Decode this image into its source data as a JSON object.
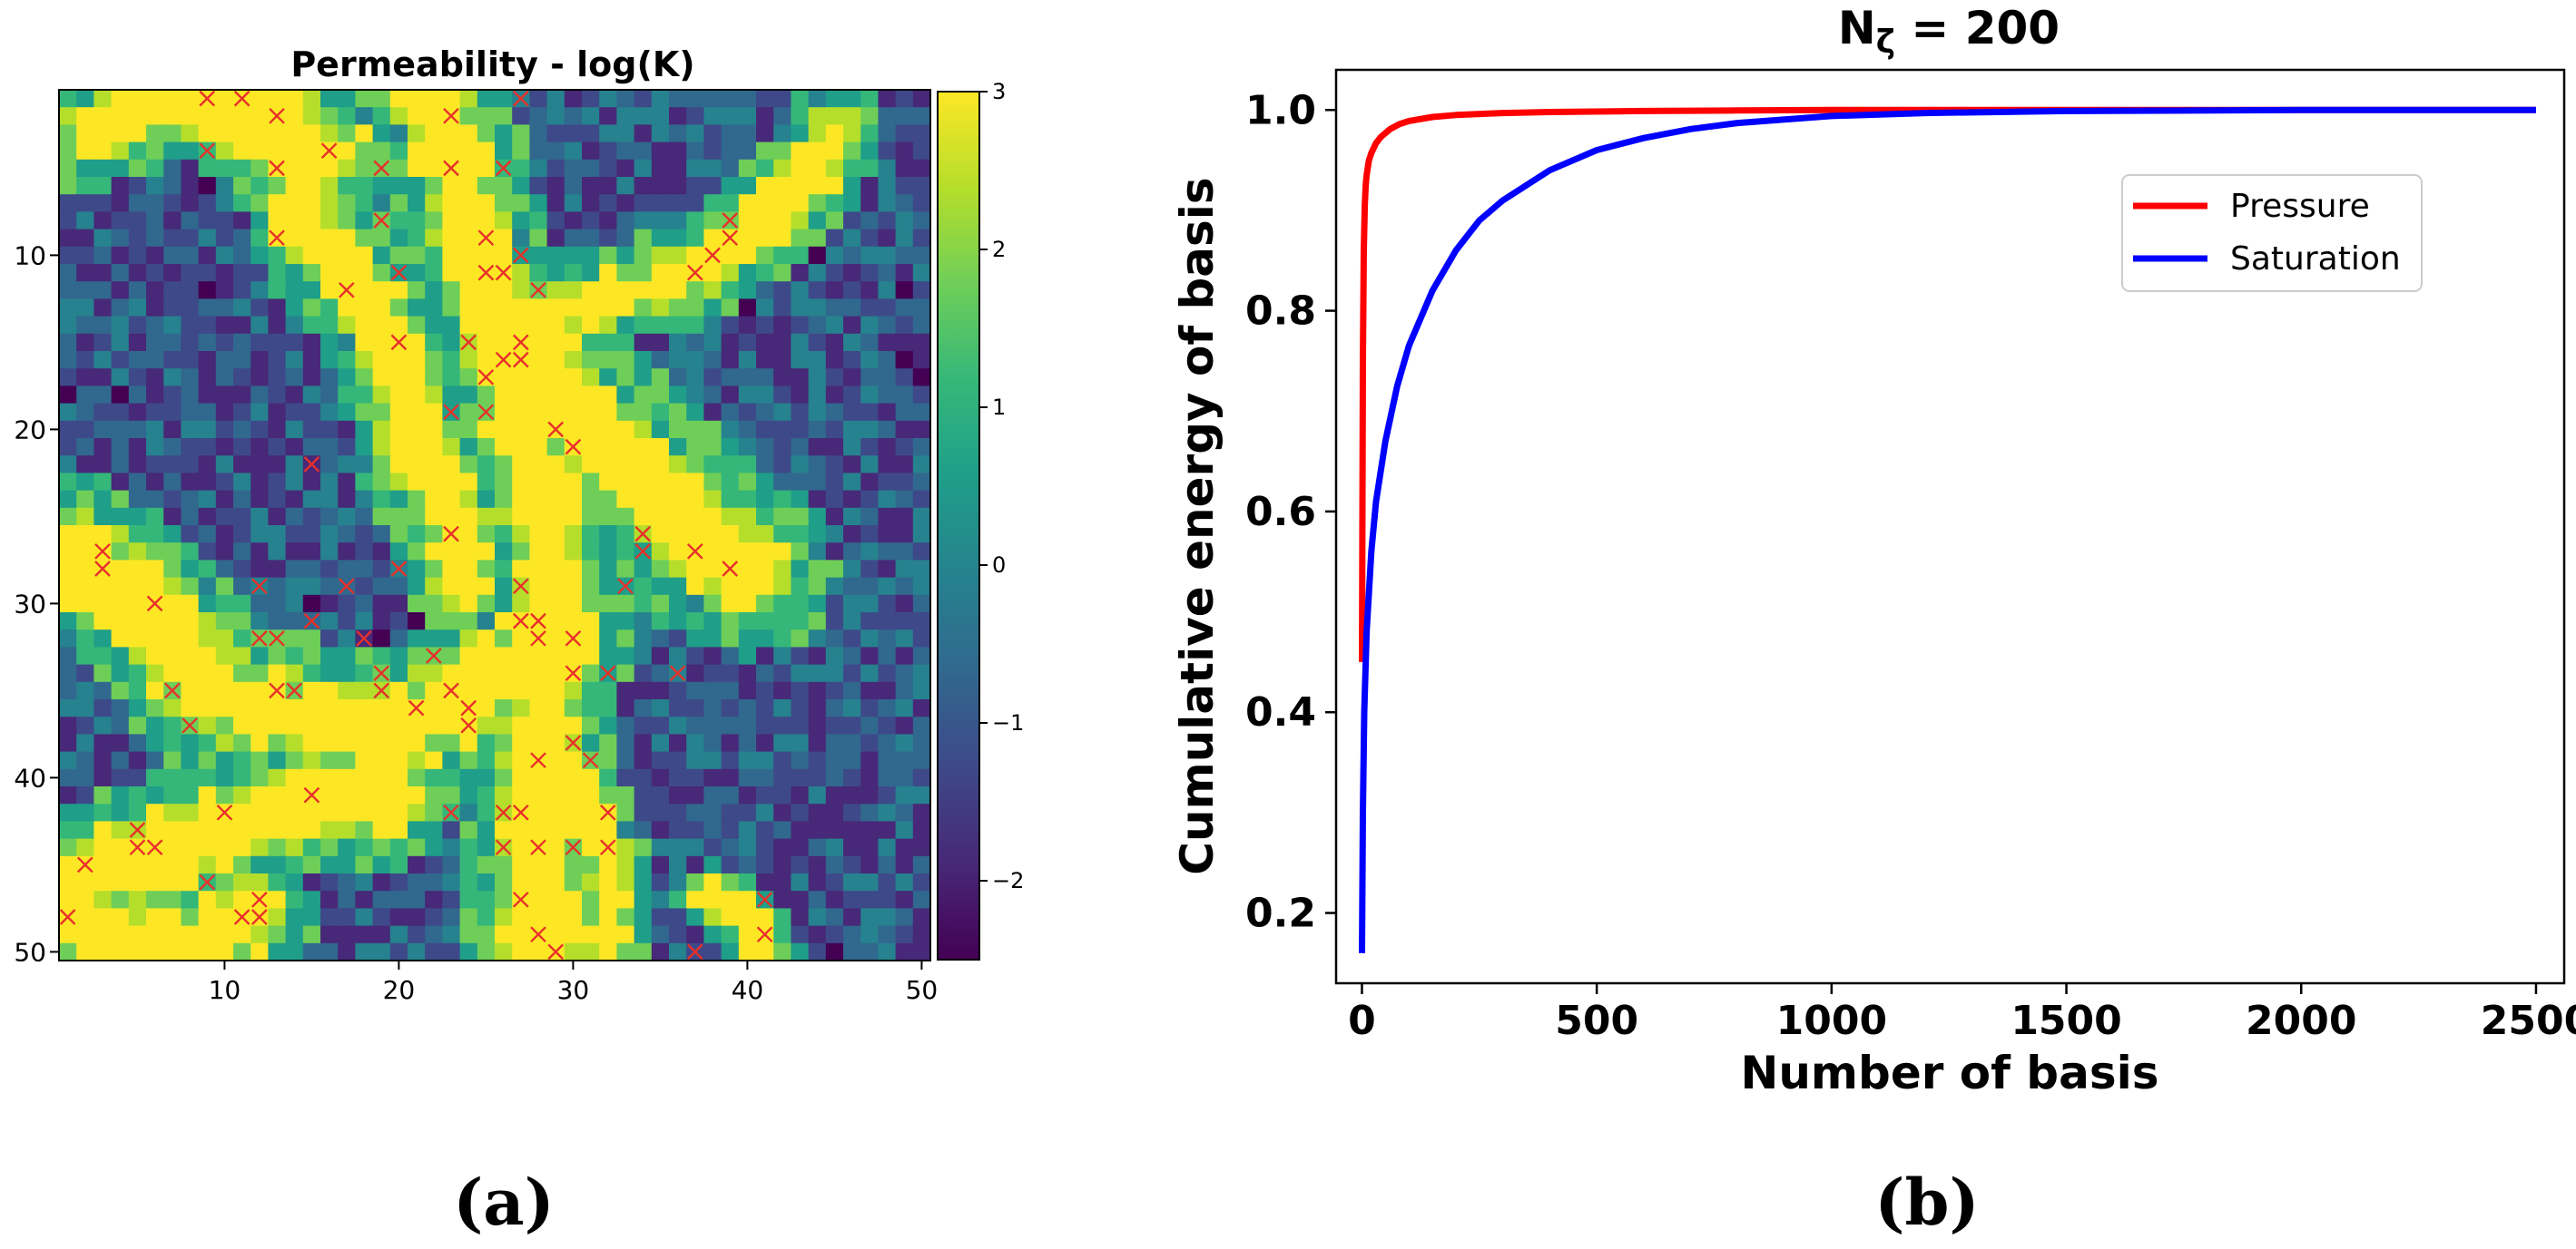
{
  "colors": {
    "cmap": [
      "#440154",
      "#482878",
      "#3e4989",
      "#31688e",
      "#26828e",
      "#1f9e89",
      "#35b779",
      "#6ece58",
      "#b5de2b",
      "#fde725"
    ],
    "marker": "#e8302a",
    "pressure": "#ff0000",
    "saturation": "#0000ff"
  },
  "panel_labels": [
    "(a)",
    "(b)"
  ],
  "chart_data": [
    {
      "type": "heatmap",
      "title": "Permeability - log(K)",
      "grid_size": [
        50,
        50
      ],
      "x_ticks": [
        10,
        20,
        30,
        40,
        50
      ],
      "y_ticks": [
        10,
        20,
        30,
        40,
        50
      ],
      "colorbar": {
        "min": -2.5,
        "max": 3,
        "ticks": [
          3,
          2,
          1,
          0,
          -1,
          -2
        ],
        "tick_labels": [
          "3",
          "2",
          "1",
          "0",
          "−1",
          "−2"
        ]
      },
      "field_description": "Channelized log-permeability field; values estimated from the image",
      "channel_paths": [
        {
          "name": "upper-left",
          "points": [
            [
              2,
              3
            ],
            [
              5,
              2
            ],
            [
              8,
              1
            ],
            [
              10,
              2
            ],
            [
              12,
              3
            ],
            [
              15,
              4
            ],
            [
              17,
              4
            ]
          ],
          "width": 1.8
        },
        {
          "name": "upper-center",
          "points": [
            [
              13,
              1
            ],
            [
              14,
              5
            ],
            [
              15,
              9
            ],
            [
              18,
              12
            ],
            [
              20,
              16
            ],
            [
              21,
              21
            ],
            [
              23,
              25
            ],
            [
              24,
              29
            ]
          ],
          "width": 2.0
        },
        {
          "name": "center-trunk",
          "points": [
            [
              22,
              1
            ],
            [
              23,
              4
            ],
            [
              24,
              8
            ],
            [
              25,
              12
            ],
            [
              26,
              16
            ],
            [
              27,
              20
            ],
            [
              28,
              24
            ],
            [
              29,
              29
            ],
            [
              29,
              33
            ],
            [
              28,
              38
            ],
            [
              28,
              44
            ],
            [
              28,
              50
            ]
          ],
          "width": 2.3
        },
        {
          "name": "center-branch",
          "points": [
            [
              27,
              14
            ],
            [
              29,
              18
            ],
            [
              32,
              21
            ],
            [
              35,
              24
            ],
            [
              38,
              27
            ],
            [
              40,
              28
            ]
          ],
          "width": 2.8
        },
        {
          "name": "upper-right",
          "points": [
            [
              45,
              3
            ],
            [
              44,
              5
            ],
            [
              42,
              7
            ],
            [
              40,
              9
            ],
            [
              37,
              11
            ],
            [
              34,
              12
            ],
            [
              30,
              13
            ],
            [
              27,
              14
            ]
          ],
          "width": 1.6
        },
        {
          "name": "left-lower",
          "points": [
            [
              1,
              27
            ],
            [
              4,
              29
            ],
            [
              7,
              32
            ],
            [
              9,
              35
            ],
            [
              12,
              36
            ],
            [
              16,
              37
            ],
            [
              20,
              37
            ],
            [
              23,
              36
            ],
            [
              25,
              34
            ],
            [
              28,
              33
            ]
          ],
          "width": 2.6
        },
        {
          "name": "bottom-left",
          "points": [
            [
              1,
              46
            ],
            [
              4,
              45
            ],
            [
              7,
              44
            ],
            [
              10,
              43
            ],
            [
              13,
              42
            ],
            [
              16,
              41
            ],
            [
              19,
              41
            ]
          ],
          "width": 2.4
        },
        {
          "name": "bottom-left-fill",
          "points": [
            [
              1,
              48
            ],
            [
              3,
              49
            ],
            [
              6,
              50
            ],
            [
              9,
              50
            ],
            [
              11,
              48
            ]
          ],
          "width": 2.4
        },
        {
          "name": "bottom-right",
          "points": [
            [
              30,
              39
            ],
            [
              31,
              42
            ],
            [
              32,
              45
            ],
            [
              32,
              50
            ]
          ],
          "width": 1.4
        },
        {
          "name": "bottom-small",
          "points": [
            [
              38,
              47
            ],
            [
              40,
              48
            ],
            [
              41,
              50
            ]
          ],
          "width": 1.2
        }
      ],
      "markers": [
        [
          9,
          1
        ],
        [
          11,
          1
        ],
        [
          27,
          1
        ],
        [
          13,
          2
        ],
        [
          23,
          2
        ],
        [
          9,
          4
        ],
        [
          16,
          4
        ],
        [
          13,
          5
        ],
        [
          19,
          5
        ],
        [
          23,
          5
        ],
        [
          26,
          5
        ],
        [
          39,
          8
        ],
        [
          19,
          8
        ],
        [
          13,
          9
        ],
        [
          25,
          9
        ],
        [
          39,
          9
        ],
        [
          27,
          10
        ],
        [
          38,
          10
        ],
        [
          20,
          11
        ],
        [
          25,
          11
        ],
        [
          26,
          11
        ],
        [
          37,
          11
        ],
        [
          17,
          12
        ],
        [
          28,
          12
        ],
        [
          20,
          15
        ],
        [
          24,
          15
        ],
        [
          27,
          15
        ],
        [
          26,
          16
        ],
        [
          27,
          16
        ],
        [
          25,
          17
        ],
        [
          23,
          19
        ],
        [
          25,
          19
        ],
        [
          29,
          20
        ],
        [
          30,
          21
        ],
        [
          15,
          22
        ],
        [
          23,
          26
        ],
        [
          34,
          26
        ],
        [
          3,
          27
        ],
        [
          34,
          27
        ],
        [
          37,
          27
        ],
        [
          3,
          28
        ],
        [
          20,
          28
        ],
        [
          39,
          28
        ],
        [
          12,
          29
        ],
        [
          17,
          29
        ],
        [
          27,
          29
        ],
        [
          33,
          29
        ],
        [
          6,
          30
        ],
        [
          15,
          31
        ],
        [
          27,
          31
        ],
        [
          28,
          31
        ],
        [
          12,
          32
        ],
        [
          13,
          32
        ],
        [
          18,
          32
        ],
        [
          28,
          32
        ],
        [
          30,
          32
        ],
        [
          22,
          33
        ],
        [
          19,
          34
        ],
        [
          30,
          34
        ],
        [
          32,
          34
        ],
        [
          36,
          34
        ],
        [
          13,
          35
        ],
        [
          14,
          35
        ],
        [
          19,
          35
        ],
        [
          7,
          35
        ],
        [
          23,
          35
        ],
        [
          21,
          36
        ],
        [
          24,
          36
        ],
        [
          24,
          37
        ],
        [
          8,
          37
        ],
        [
          30,
          38
        ],
        [
          28,
          39
        ],
        [
          31,
          39
        ],
        [
          15,
          41
        ],
        [
          10,
          42
        ],
        [
          23,
          42
        ],
        [
          26,
          42
        ],
        [
          27,
          42
        ],
        [
          32,
          42
        ],
        [
          5,
          43
        ],
        [
          6,
          44
        ],
        [
          5,
          44
        ],
        [
          26,
          44
        ],
        [
          28,
          44
        ],
        [
          30,
          44
        ],
        [
          32,
          44
        ],
        [
          2,
          45
        ],
        [
          9,
          46
        ],
        [
          12,
          47
        ],
        [
          27,
          47
        ],
        [
          41,
          47
        ],
        [
          11,
          48
        ],
        [
          12,
          48
        ],
        [
          1,
          48
        ],
        [
          28,
          49
        ],
        [
          41,
          49
        ],
        [
          29,
          50
        ],
        [
          37,
          50
        ]
      ]
    },
    {
      "type": "line",
      "title": "Nζ = 200",
      "title_main": "N",
      "title_sub": "ζ",
      "title_rest": " = 200",
      "xlabel": "Number of basis",
      "ylabel": "Cumulative energy of basis",
      "xlim": [
        -55,
        2560
      ],
      "ylim": [
        0.13,
        1.04
      ],
      "xticks": [
        0,
        500,
        1000,
        1500,
        2000,
        2500
      ],
      "yticks": [
        0.2,
        0.4,
        0.6,
        0.8,
        1.0
      ],
      "ytick_labels": [
        "0.2",
        "0.4",
        "0.6",
        "0.8",
        "1.0"
      ],
      "legend_position": "upper-right",
      "series": [
        {
          "name": "Pressure",
          "color": "#ff0000",
          "x": [
            0,
            2,
            4,
            6,
            8,
            10,
            15,
            20,
            30,
            40,
            60,
            80,
            100,
            150,
            200,
            300,
            400,
            600,
            800,
            1000,
            1500,
            2000,
            2500
          ],
          "y": [
            0.45,
            0.75,
            0.86,
            0.905,
            0.925,
            0.935,
            0.95,
            0.957,
            0.967,
            0.973,
            0.981,
            0.986,
            0.989,
            0.993,
            0.995,
            0.997,
            0.998,
            0.999,
            0.9995,
            1.0,
            1.0,
            1.0,
            1.0
          ]
        },
        {
          "name": "Saturation",
          "color": "#0000ff",
          "x": [
            0,
            2,
            5,
            10,
            20,
            30,
            50,
            75,
            100,
            150,
            200,
            250,
            300,
            400,
            500,
            600,
            700,
            800,
            1000,
            1200,
            1500,
            2000,
            2500
          ],
          "y": [
            0.16,
            0.3,
            0.4,
            0.48,
            0.56,
            0.61,
            0.67,
            0.725,
            0.765,
            0.82,
            0.86,
            0.89,
            0.91,
            0.94,
            0.96,
            0.972,
            0.981,
            0.987,
            0.994,
            0.997,
            0.999,
            1.0,
            1.0
          ]
        }
      ]
    }
  ]
}
